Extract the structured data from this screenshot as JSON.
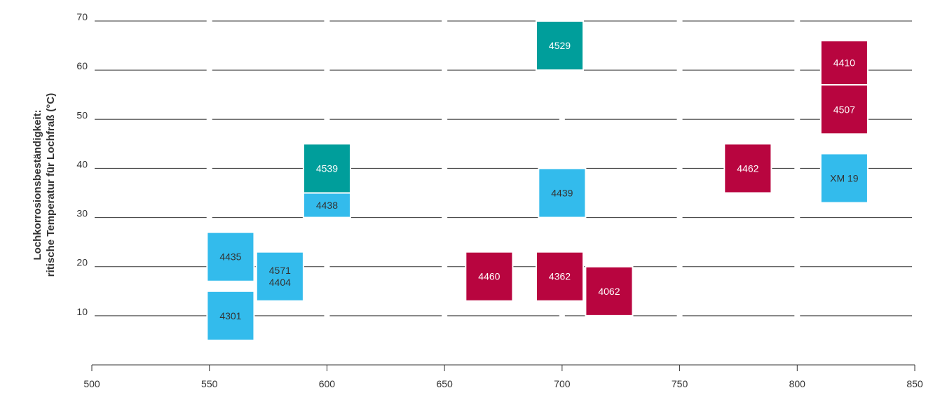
{
  "chart_data": {
    "type": "scatter",
    "title": "",
    "xlabel": "",
    "ylabel_line1": "Lochkorrosionsbeständigkeit:",
    "ylabel_line2": "ritische Temperatur für Lochfraß (°C)",
    "xlim": [
      500,
      850
    ],
    "ylim": [
      0,
      70
    ],
    "x_ticks": [
      500,
      550,
      600,
      650,
      700,
      750,
      800,
      850
    ],
    "y_ticks": [
      10,
      20,
      30,
      40,
      50,
      60,
      70
    ],
    "grid": "horizontal dashed",
    "legend": "none",
    "colors": {
      "light_blue": "#33bbec",
      "teal": "#009e9b",
      "crimson": "#b8053f"
    },
    "points": [
      {
        "label": "4435",
        "x_range": [
          549,
          569
        ],
        "y_range": [
          17,
          27
        ],
        "color": "light_blue"
      },
      {
        "label": "4301",
        "x_range": [
          549,
          569
        ],
        "y_range": [
          5,
          15
        ],
        "color": "light_blue"
      },
      {
        "label": "4571\n4404",
        "x_range": [
          570,
          590
        ],
        "y_range": [
          13,
          23
        ],
        "color": "light_blue"
      },
      {
        "label": "4539",
        "x_range": [
          590,
          610
        ],
        "y_range": [
          35,
          45
        ],
        "color": "teal"
      },
      {
        "label": "4438",
        "x_range": [
          590,
          610
        ],
        "y_range": [
          30,
          35
        ],
        "color": "light_blue"
      },
      {
        "label": "4460",
        "x_range": [
          659,
          679
        ],
        "y_range": [
          13,
          23
        ],
        "color": "crimson"
      },
      {
        "label": "4529",
        "x_range": [
          689,
          709
        ],
        "y_range": [
          60,
          70
        ],
        "color": "teal"
      },
      {
        "label": "4439",
        "x_range": [
          690,
          710
        ],
        "y_range": [
          30,
          40
        ],
        "color": "light_blue"
      },
      {
        "label": "4362",
        "x_range": [
          689,
          709
        ],
        "y_range": [
          13,
          23
        ],
        "color": "crimson"
      },
      {
        "label": "4062",
        "x_range": [
          710,
          730
        ],
        "y_range": [
          10,
          20
        ],
        "color": "crimson"
      },
      {
        "label": "4462",
        "x_range": [
          769,
          789
        ],
        "y_range": [
          35,
          45
        ],
        "color": "crimson"
      },
      {
        "label": "4410",
        "x_range": [
          810,
          830
        ],
        "y_range": [
          57,
          66
        ],
        "color": "crimson"
      },
      {
        "label": "4507",
        "x_range": [
          810,
          830
        ],
        "y_range": [
          47,
          57
        ],
        "color": "crimson"
      },
      {
        "label": "XM 19",
        "x_range": [
          810,
          830
        ],
        "y_range": [
          33,
          43
        ],
        "color": "light_blue"
      }
    ]
  }
}
